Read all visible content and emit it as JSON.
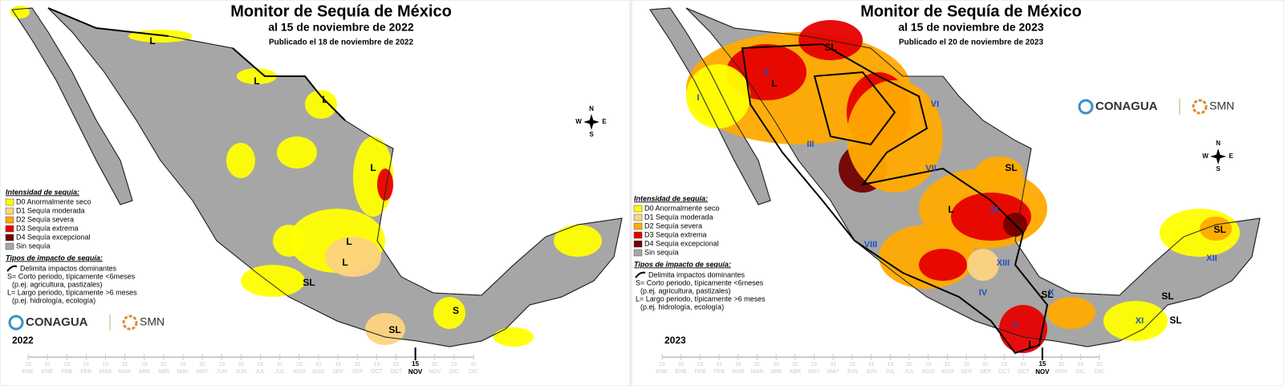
{
  "panels": [
    {
      "title": "Monitor de Sequía de México",
      "date": "al 15 de noviembre de 2022",
      "published": "Publicado el 18 de noviembre de 2022",
      "year": "2022",
      "region_labels": [
        "L",
        "L",
        "L",
        "L",
        "L",
        "L",
        "SL",
        "SL",
        "S"
      ]
    },
    {
      "title": "Monitor de Sequía de México",
      "date": "al 15 de noviembre de 2023",
      "published": "Publicado el 20 de noviembre de 2023",
      "year": "2023",
      "region_labels": [
        "SL",
        "L",
        "SL",
        "L",
        "SL",
        "L",
        "SL",
        "SL",
        "SL",
        "I",
        "II",
        "III",
        "IV",
        "V",
        "VI",
        "VII",
        "VIII",
        "IX",
        "X",
        "XI",
        "XII",
        "XIII"
      ]
    }
  ],
  "legend": {
    "title": "Intensidad de sequía:",
    "items": [
      {
        "label": "D0 Anormalmente seco",
        "color": "#ffff00"
      },
      {
        "label": "D1 Sequía moderada",
        "color": "#fcd37f"
      },
      {
        "label": "D2 Sequía severa",
        "color": "#ffaa00"
      },
      {
        "label": "D3 Sequía extrema",
        "color": "#e60000"
      },
      {
        "label": "D4 Sequía excepcional",
        "color": "#730000"
      },
      {
        "label": "Sin sequía",
        "color": "#a6a6a6"
      }
    ],
    "impact_title": "Tipos de impacto de sequía:",
    "impact_lines": [
      "Delimita impactos dominantes",
      "S= Corto periodo, típicamente <6meses",
      "(p.ej. agricultura, pastizales)",
      "L= Largo periodo, típicamente >6 meses",
      "(p.ej. hidrología, ecología)"
    ]
  },
  "logos": {
    "conagua": "CONAGUA",
    "smn": "SMN"
  },
  "compass": [
    "N",
    "S",
    "W",
    "E"
  ],
  "timeline": {
    "months": [
      "ENE",
      "FEB",
      "MAR",
      "ABR",
      "MAY",
      "JUN",
      "JUL",
      "AGO",
      "SEP",
      "OCT",
      "NOV",
      "DIC"
    ],
    "days": [
      "15",
      "31"
    ],
    "marker_day": "15",
    "marker_month": "NOV"
  }
}
